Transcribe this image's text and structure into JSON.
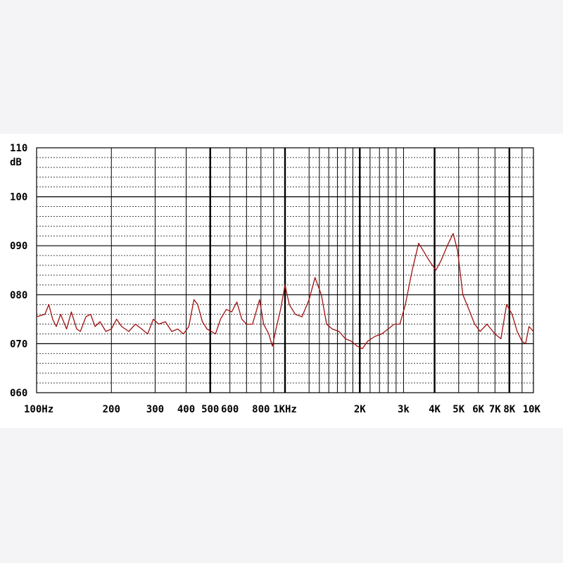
{
  "chart_data": {
    "type": "line",
    "x_scale": "log",
    "x_range": [
      100,
      10000
    ],
    "ylim": [
      60,
      110
    ],
    "grid": true,
    "ylabel": "dB",
    "y_ticks": [
      {
        "value": 110,
        "label": "110"
      },
      {
        "value": 100,
        "label": "100"
      },
      {
        "value": 90,
        "label": "090"
      },
      {
        "value": 80,
        "label": "080"
      },
      {
        "value": 70,
        "label": "070"
      },
      {
        "value": 60,
        "label": "060"
      }
    ],
    "x_ticks": [
      {
        "value": 100,
        "label": "100Hz"
      },
      {
        "value": 200,
        "label": "200"
      },
      {
        "value": 300,
        "label": "300"
      },
      {
        "value": 400,
        "label": "400"
      },
      {
        "value": 500,
        "label": "500"
      },
      {
        "value": 600,
        "label": "600"
      },
      {
        "value": 800,
        "label": "800"
      },
      {
        "value": 1000,
        "label": "1KHz"
      },
      {
        "value": 2000,
        "label": "2K"
      },
      {
        "value": 3000,
        "label": "3k"
      },
      {
        "value": 4000,
        "label": "4K"
      },
      {
        "value": 5000,
        "label": "5K"
      },
      {
        "value": 6000,
        "label": "6K"
      },
      {
        "value": 7000,
        "label": "7K"
      },
      {
        "value": 8000,
        "label": "8K"
      },
      {
        "value": 10000,
        "label": "10K"
      }
    ],
    "series": [
      {
        "color": "#a01010",
        "points": [
          [
            100,
            75.5
          ],
          [
            108,
            76
          ],
          [
            112,
            78
          ],
          [
            116,
            75
          ],
          [
            120,
            73.5
          ],
          [
            125,
            76
          ],
          [
            132,
            73
          ],
          [
            138,
            76.5
          ],
          [
            145,
            73
          ],
          [
            150,
            72.5
          ],
          [
            158,
            75.5
          ],
          [
            165,
            76
          ],
          [
            172,
            73.5
          ],
          [
            180,
            74.5
          ],
          [
            190,
            72.5
          ],
          [
            200,
            73
          ],
          [
            210,
            75
          ],
          [
            220,
            73.5
          ],
          [
            235,
            72.5
          ],
          [
            250,
            74
          ],
          [
            265,
            73
          ],
          [
            280,
            72
          ],
          [
            295,
            75
          ],
          [
            310,
            74
          ],
          [
            330,
            74.5
          ],
          [
            350,
            72.5
          ],
          [
            370,
            73
          ],
          [
            390,
            72
          ],
          [
            410,
            73.5
          ],
          [
            430,
            79
          ],
          [
            445,
            78
          ],
          [
            465,
            74.5
          ],
          [
            485,
            73
          ],
          [
            505,
            72.5
          ],
          [
            525,
            72
          ],
          [
            550,
            75
          ],
          [
            580,
            77
          ],
          [
            610,
            76.5
          ],
          [
            640,
            78.5
          ],
          [
            670,
            75
          ],
          [
            700,
            74
          ],
          [
            740,
            74
          ],
          [
            790,
            79
          ],
          [
            820,
            74
          ],
          [
            860,
            72
          ],
          [
            890,
            69.5
          ],
          [
            920,
            73
          ],
          [
            960,
            77
          ],
          [
            1000,
            82
          ],
          [
            1040,
            78
          ],
          [
            1100,
            76
          ],
          [
            1170,
            75.5
          ],
          [
            1250,
            79
          ],
          [
            1320,
            83.5
          ],
          [
            1400,
            80
          ],
          [
            1470,
            74
          ],
          [
            1550,
            73
          ],
          [
            1650,
            72.5
          ],
          [
            1750,
            71
          ],
          [
            1850,
            70.5
          ],
          [
            1950,
            69.5
          ],
          [
            2050,
            69
          ],
          [
            2150,
            70.5
          ],
          [
            2300,
            71.5
          ],
          [
            2450,
            72
          ],
          [
            2600,
            73
          ],
          [
            2750,
            74
          ],
          [
            2900,
            74
          ],
          [
            3050,
            78
          ],
          [
            3250,
            85
          ],
          [
            3450,
            90.5
          ],
          [
            3600,
            89
          ],
          [
            3800,
            87
          ],
          [
            4050,
            85
          ],
          [
            4250,
            87
          ],
          [
            4500,
            90
          ],
          [
            4750,
            92.5
          ],
          [
            4950,
            89
          ],
          [
            5200,
            80
          ],
          [
            5500,
            77
          ],
          [
            5800,
            74
          ],
          [
            6100,
            72.5
          ],
          [
            6500,
            74
          ],
          [
            7000,
            72
          ],
          [
            7400,
            71
          ],
          [
            7800,
            78
          ],
          [
            8200,
            76
          ],
          [
            8600,
            72.5
          ],
          [
            9000,
            70.5
          ],
          [
            9300,
            70
          ],
          [
            9600,
            73.5
          ],
          [
            10000,
            72.5
          ]
        ]
      }
    ]
  }
}
